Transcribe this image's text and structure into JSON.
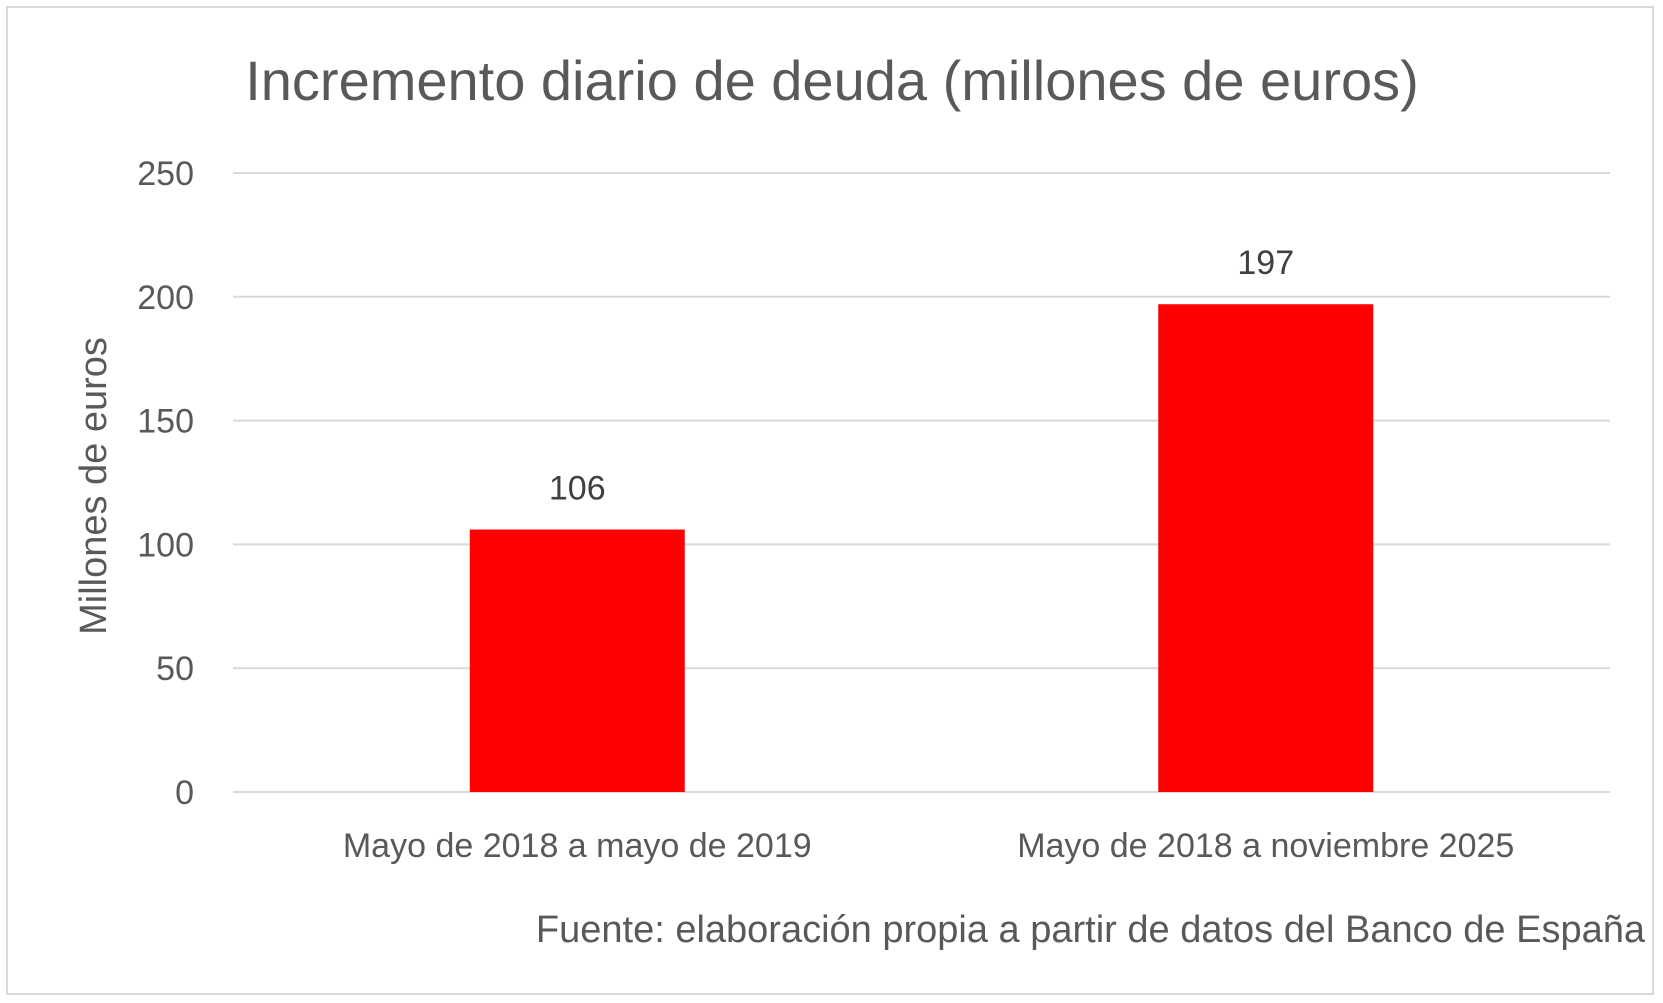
{
  "chart_data": {
    "type": "bar",
    "title": "Incremento diario de deuda (millones de euros)",
    "ylabel": "Millones de euros",
    "xlabel": "",
    "categories": [
      "Mayo de 2018 a mayo de 2019",
      "Mayo de 2018 a noviembre 2025"
    ],
    "values": [
      106,
      197
    ],
    "data_labels": [
      "106",
      "197"
    ],
    "ylim": [
      0,
      250
    ],
    "yticks": [
      0,
      50,
      100,
      150,
      200,
      250
    ],
    "ytick_labels": [
      "0",
      "50",
      "100",
      "150",
      "200",
      "250"
    ],
    "grid": true,
    "legend": "none",
    "bar_color": "#ff0000",
    "source_note": "Fuente: elaboración propia a partir de datos del Banco de España"
  }
}
